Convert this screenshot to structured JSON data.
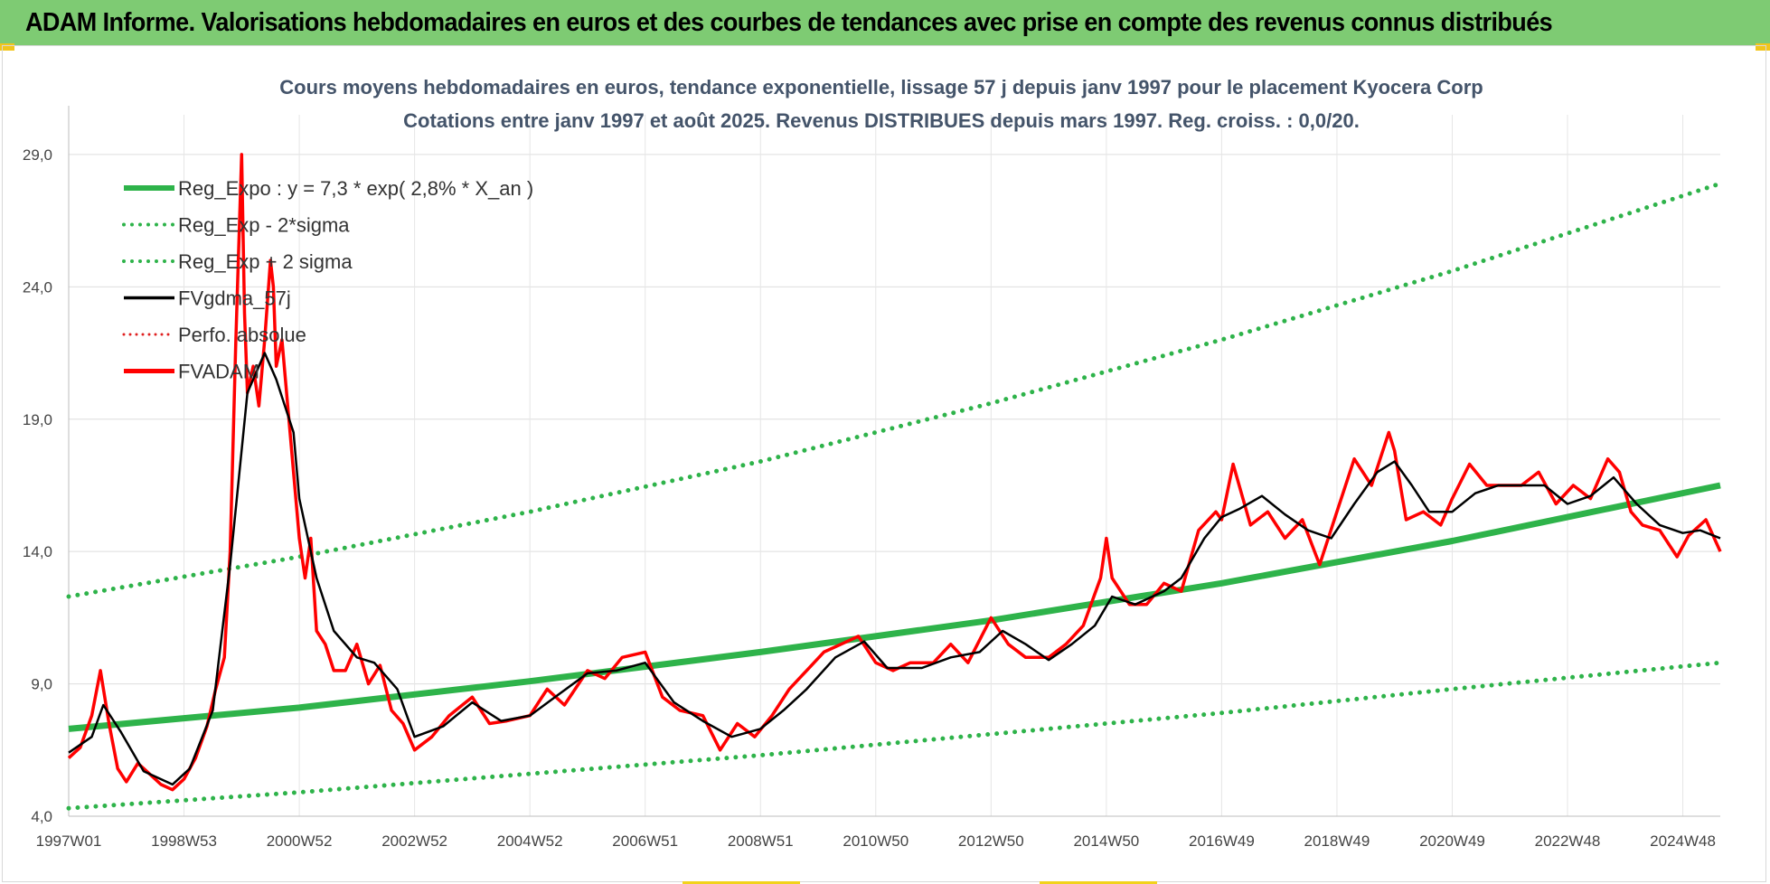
{
  "banner": {
    "title": "ADAM Informe. Valorisations hebdomadaires en euros et des courbes de tendances avec prise en compte des revenus connus distribués"
  },
  "chart_data": {
    "type": "line",
    "subtitle_line1": "Cours moyens hebdomadaires en euros, tendance exponentielle, lissage 57 j depuis janv 1997 pour le placement Kyocera Corp",
    "subtitle_line2": "Cotations entre janv 1997 et août 2025. Revenus DISTRIBUES depuis mars 1997. Reg. croiss. : 0,0/20.",
    "x_axis": {
      "range": [
        1997.0,
        2025.65
      ],
      "tick_labels": [
        "1997W01",
        "1998W53",
        "2000W52",
        "2002W52",
        "2004W52",
        "2006W51",
        "2008W51",
        "2010W50",
        "2012W50",
        "2014W50",
        "2016W49",
        "2018W49",
        "2020W49",
        "2022W48",
        "2024W48"
      ],
      "tick_values": [
        1997.0,
        1999.0,
        2001.0,
        2003.0,
        2005.0,
        2007.0,
        2009.0,
        2011.0,
        2013.0,
        2015.0,
        2017.0,
        2019.0,
        2021.0,
        2023.0,
        2025.0
      ]
    },
    "y_axis": {
      "range": [
        4.0,
        30.5
      ],
      "tick_values": [
        4,
        9,
        14,
        19,
        24,
        29
      ],
      "tick_labels": [
        "4,0",
        "9,0",
        "14,0",
        "19,0",
        "24,0",
        "29,0"
      ]
    },
    "grid": true,
    "legend_position": "top-left",
    "legend": [
      {
        "label": "Reg_Expo : y = 7,3 * exp( 2,8% *  X_an )",
        "color": "#2eb34a",
        "style": "solid-thick"
      },
      {
        "label": "Reg_Exp - 2*sigma",
        "color": "#2eb34a",
        "style": "dotted"
      },
      {
        "label": "Reg_Exp + 2 sigma",
        "color": "#2eb34a",
        "style": "dotted"
      },
      {
        "label": "FVgdma_57j",
        "color": "#000000",
        "style": "solid"
      },
      {
        "label": "Perfo. absolue",
        "color": "#e02020",
        "style": "dotted"
      },
      {
        "label": "FVADAM",
        "color": "#ff0000",
        "style": "solid-thick"
      }
    ],
    "series": [
      {
        "name": "Reg_Expo : y = 7,3 * exp( 2,8% *  X_an )",
        "x": [
          1997.0,
          2001.0,
          2005.0,
          2009.0,
          2013.0,
          2017.0,
          2021.0,
          2025.65
        ],
        "y": [
          7.3,
          8.1,
          9.1,
          10.2,
          11.4,
          12.8,
          14.4,
          16.5
        ]
      },
      {
        "name": "Reg_Exp - 2*sigma",
        "x": [
          1997.0,
          2001.0,
          2005.0,
          2009.0,
          2013.0,
          2017.0,
          2021.0,
          2025.65
        ],
        "y": [
          4.3,
          4.9,
          5.6,
          6.3,
          7.1,
          7.9,
          8.8,
          9.8
        ]
      },
      {
        "name": "Reg_Exp + 2 sigma",
        "x": [
          1997.0,
          2001.0,
          2005.0,
          2009.0,
          2013.0,
          2017.0,
          2021.0,
          2025.65
        ],
        "y": [
          12.3,
          13.8,
          15.5,
          17.4,
          19.6,
          22.0,
          24.6,
          27.9
        ]
      },
      {
        "name": "FVgdma_57j",
        "x": [
          1997.0,
          1997.4,
          1997.6,
          1997.9,
          1998.3,
          1998.8,
          1999.1,
          1999.5,
          1999.8,
          2000.1,
          2000.4,
          2000.6,
          2000.9,
          2001.0,
          2001.3,
          2001.6,
          2002.0,
          2002.3,
          2002.7,
          2003.0,
          2003.5,
          2004.0,
          2004.5,
          2005.0,
          2005.5,
          2006.0,
          2006.5,
          2007.0,
          2007.5,
          2008.0,
          2008.5,
          2009.0,
          2009.4,
          2009.8,
          2010.3,
          2010.8,
          2011.2,
          2011.8,
          2012.3,
          2012.8,
          2013.2,
          2013.6,
          2014.0,
          2014.4,
          2014.8,
          2015.1,
          2015.5,
          2016.0,
          2016.3,
          2016.7,
          2017.0,
          2017.3,
          2017.7,
          2018.1,
          2018.5,
          2018.9,
          2019.3,
          2019.7,
          2020.0,
          2020.3,
          2020.6,
          2021.0,
          2021.4,
          2021.8,
          2022.2,
          2022.6,
          2023.0,
          2023.4,
          2023.8,
          2024.2,
          2024.6,
          2025.0,
          2025.3,
          2025.65
        ],
        "y": [
          6.4,
          7.0,
          8.2,
          7.2,
          5.7,
          5.2,
          5.8,
          8.0,
          13.5,
          20.0,
          21.5,
          20.5,
          18.5,
          16.0,
          13.0,
          11.0,
          10.0,
          9.8,
          8.8,
          7.0,
          7.4,
          8.3,
          7.6,
          7.8,
          8.6,
          9.4,
          9.5,
          9.8,
          8.3,
          7.6,
          7.0,
          7.3,
          8.0,
          8.8,
          10.0,
          10.6,
          9.6,
          9.6,
          10.0,
          10.2,
          11.0,
          10.5,
          9.9,
          10.5,
          11.2,
          12.3,
          12.0,
          12.5,
          13.0,
          14.5,
          15.3,
          15.6,
          16.1,
          15.4,
          14.8,
          14.5,
          15.8,
          17.0,
          17.4,
          16.5,
          15.5,
          15.5,
          16.2,
          16.5,
          16.5,
          16.5,
          15.8,
          16.1,
          16.8,
          15.8,
          15.0,
          14.7,
          14.8,
          14.5
        ]
      },
      {
        "name": "FVADAM",
        "x": [
          1997.0,
          1997.2,
          1997.4,
          1997.55,
          1997.7,
          1997.85,
          1998.0,
          1998.2,
          1998.4,
          1998.6,
          1998.8,
          1999.0,
          1999.2,
          1999.4,
          1999.55,
          1999.7,
          1999.8,
          1999.9,
          2000.0,
          2000.05,
          2000.1,
          2000.2,
          2000.3,
          2000.4,
          2000.5,
          2000.55,
          2000.6,
          2000.7,
          2000.8,
          2000.9,
          2001.0,
          2001.1,
          2001.2,
          2001.3,
          2001.45,
          2001.6,
          2001.8,
          2002.0,
          2002.2,
          2002.4,
          2002.6,
          2002.8,
          2003.0,
          2003.3,
          2003.6,
          2004.0,
          2004.3,
          2004.6,
          2005.0,
          2005.3,
          2005.6,
          2006.0,
          2006.3,
          2006.6,
          2007.0,
          2007.3,
          2007.6,
          2008.0,
          2008.3,
          2008.6,
          2008.9,
          2009.2,
          2009.5,
          2009.8,
          2010.1,
          2010.4,
          2010.7,
          2011.0,
          2011.3,
          2011.6,
          2012.0,
          2012.3,
          2012.6,
          2013.0,
          2013.3,
          2013.6,
          2014.0,
          2014.3,
          2014.6,
          2014.9,
          2015.0,
          2015.1,
          2015.4,
          2015.7,
          2016.0,
          2016.3,
          2016.6,
          2016.9,
          2017.0,
          2017.2,
          2017.5,
          2017.8,
          2018.1,
          2018.4,
          2018.7,
          2019.0,
          2019.3,
          2019.6,
          2019.9,
          2020.0,
          2020.2,
          2020.5,
          2020.8,
          2021.0,
          2021.3,
          2021.6,
          2021.9,
          2022.2,
          2022.5,
          2022.8,
          2023.1,
          2023.4,
          2023.7,
          2023.9,
          2024.1,
          2024.3,
          2024.6,
          2024.9,
          2025.1,
          2025.4,
          2025.65
        ],
        "y": [
          6.2,
          6.6,
          7.8,
          9.5,
          7.5,
          5.8,
          5.3,
          6.0,
          5.6,
          5.2,
          5.0,
          5.4,
          6.2,
          7.4,
          8.8,
          10.0,
          14.0,
          22.0,
          29.0,
          23.0,
          20.0,
          21.0,
          19.5,
          22.0,
          25.0,
          24.0,
          21.0,
          22.0,
          19.5,
          17.0,
          14.5,
          13.0,
          14.5,
          11.0,
          10.5,
          9.5,
          9.5,
          10.5,
          9.0,
          9.7,
          8.0,
          7.5,
          6.5,
          7.0,
          7.8,
          8.5,
          7.5,
          7.6,
          7.8,
          8.8,
          8.2,
          9.5,
          9.2,
          10.0,
          10.2,
          8.5,
          8.0,
          7.8,
          6.5,
          7.5,
          7.0,
          7.8,
          8.8,
          9.5,
          10.2,
          10.5,
          10.8,
          9.8,
          9.5,
          9.8,
          9.8,
          10.5,
          9.8,
          11.5,
          10.5,
          10.0,
          10.0,
          10.5,
          11.2,
          13.0,
          14.5,
          13.0,
          12.0,
          12.0,
          12.8,
          12.5,
          14.8,
          15.5,
          15.2,
          17.3,
          15.0,
          15.5,
          14.5,
          15.2,
          13.5,
          15.5,
          17.5,
          16.5,
          18.5,
          17.8,
          15.2,
          15.5,
          15.0,
          16.0,
          17.3,
          16.5,
          16.5,
          16.5,
          17.0,
          15.8,
          16.5,
          16.0,
          17.5,
          17.0,
          15.5,
          15.0,
          14.8,
          13.8,
          14.6,
          15.2,
          14.0
        ]
      }
    ]
  }
}
